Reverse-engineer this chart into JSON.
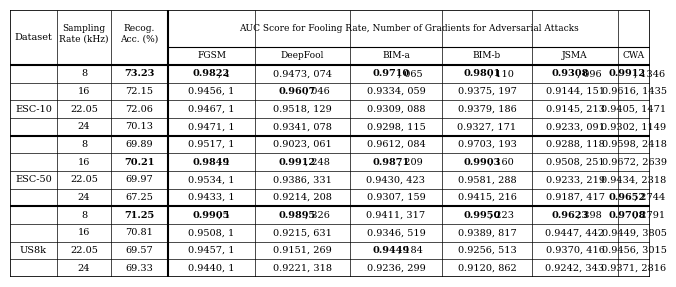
{
  "rows": [
    {
      "dataset": "ESC-10",
      "sr": "8",
      "acc": "73.23",
      "acc_bold": true,
      "cols": [
        "0.9822, 1",
        "0.9473, 074",
        "0.9710, 065",
        "0.9801, 110",
        "0.9308, 096",
        "0.9912, 1346"
      ],
      "bold": [
        true,
        false,
        true,
        true,
        true,
        true
      ]
    },
    {
      "dataset": "ESC-10",
      "sr": "16",
      "acc": "72.15",
      "acc_bold": false,
      "cols": [
        "0.9456, 1",
        "0.9607, 046",
        "0.9334, 059",
        "0.9375, 197",
        "0.9144, 151",
        "0.9616, 1435"
      ],
      "bold": [
        false,
        true,
        false,
        false,
        false,
        false
      ]
    },
    {
      "dataset": "ESC-10",
      "sr": "22.05",
      "acc": "72.06",
      "acc_bold": false,
      "cols": [
        "0.9467, 1",
        "0.9518, 129",
        "0.9309, 088",
        "0.9379, 186",
        "0.9145, 213",
        "0.9405, 1471"
      ],
      "bold": [
        false,
        false,
        false,
        false,
        false,
        false
      ]
    },
    {
      "dataset": "ESC-10",
      "sr": "24",
      "acc": "70.13",
      "acc_bold": false,
      "cols": [
        "0.9471, 1",
        "0.9341, 078",
        "0.9298, 115",
        "0.9327, 171",
        "0.9233, 091",
        "0.9302, 1149"
      ],
      "bold": [
        false,
        false,
        false,
        false,
        false,
        false
      ]
    },
    {
      "dataset": "ESC-50",
      "sr": "8",
      "acc": "69.89",
      "acc_bold": false,
      "cols": [
        "0.9517, 1",
        "0.9023, 061",
        "0.9612, 084",
        "0.9703, 193",
        "0.9288, 118",
        "0.9598, 2418"
      ],
      "bold": [
        false,
        false,
        false,
        false,
        false,
        false
      ]
    },
    {
      "dataset": "ESC-50",
      "sr": "16",
      "acc": "70.21",
      "acc_bold": true,
      "cols": [
        "0.9849, 1",
        "0.9912, 248",
        "0.9871, 209",
        "0.9903, 160",
        "0.9508, 251",
        "0.9672, 2639"
      ],
      "bold": [
        true,
        true,
        true,
        true,
        false,
        false
      ]
    },
    {
      "dataset": "ESC-50",
      "sr": "22.05",
      "acc": "69.97",
      "acc_bold": false,
      "cols": [
        "0.9534, 1",
        "0.9386, 331",
        "0.9430, 423",
        "0.9581, 288",
        "0.9233, 219",
        "0.9434, 2318"
      ],
      "bold": [
        false,
        false,
        false,
        false,
        false,
        false
      ]
    },
    {
      "dataset": "ESC-50",
      "sr": "24",
      "acc": "67.25",
      "acc_bold": false,
      "cols": [
        "0.9433, 1",
        "0.9214, 208",
        "0.9307, 159",
        "0.9415, 216",
        "0.9187, 417",
        "0.9652, 2744"
      ],
      "bold": [
        false,
        false,
        false,
        false,
        false,
        true
      ]
    },
    {
      "dataset": "US8k",
      "sr": "8",
      "acc": "71.25",
      "acc_bold": true,
      "cols": [
        "0.9905, 1",
        "0.9895, 326",
        "0.9411, 317",
        "0.9950, 223",
        "0.9623, 398",
        "0.9708, 2791"
      ],
      "bold": [
        true,
        true,
        false,
        true,
        true,
        true
      ]
    },
    {
      "dataset": "US8k",
      "sr": "16",
      "acc": "70.81",
      "acc_bold": false,
      "cols": [
        "0.9508, 1",
        "0.9215, 631",
        "0.9346, 519",
        "0.9389, 817",
        "0.9447, 442",
        "0.9449, 3805"
      ],
      "bold": [
        false,
        false,
        false,
        false,
        false,
        false
      ]
    },
    {
      "dataset": "US8k",
      "sr": "22.05",
      "acc": "69.57",
      "acc_bold": false,
      "cols": [
        "0.9457, 1",
        "0.9151, 269",
        "0.9449, 184",
        "0.9256, 513",
        "0.9370, 416",
        "0.9456, 3015"
      ],
      "bold": [
        false,
        false,
        true,
        false,
        false,
        false
      ]
    },
    {
      "dataset": "US8k",
      "sr": "24",
      "acc": "69.33",
      "acc_bold": false,
      "cols": [
        "0.9440, 1",
        "0.9221, 318",
        "0.9236, 299",
        "0.9120, 862",
        "0.9242, 343",
        "0.9371, 2816"
      ],
      "bold": [
        false,
        false,
        false,
        false,
        false,
        false
      ]
    }
  ],
  "attack_names": [
    "FGSM",
    "DeepFool",
    "BIM-a",
    "BIM-b",
    "JSMA",
    "CWA"
  ],
  "dataset_groups": [
    {
      "name": "ESC-10",
      "start": 0,
      "end": 4
    },
    {
      "name": "ESC-50",
      "start": 4,
      "end": 8
    },
    {
      "name": "US8k",
      "start": 8,
      "end": 12
    }
  ],
  "bg_color": "#ffffff",
  "font_size": 7.0
}
